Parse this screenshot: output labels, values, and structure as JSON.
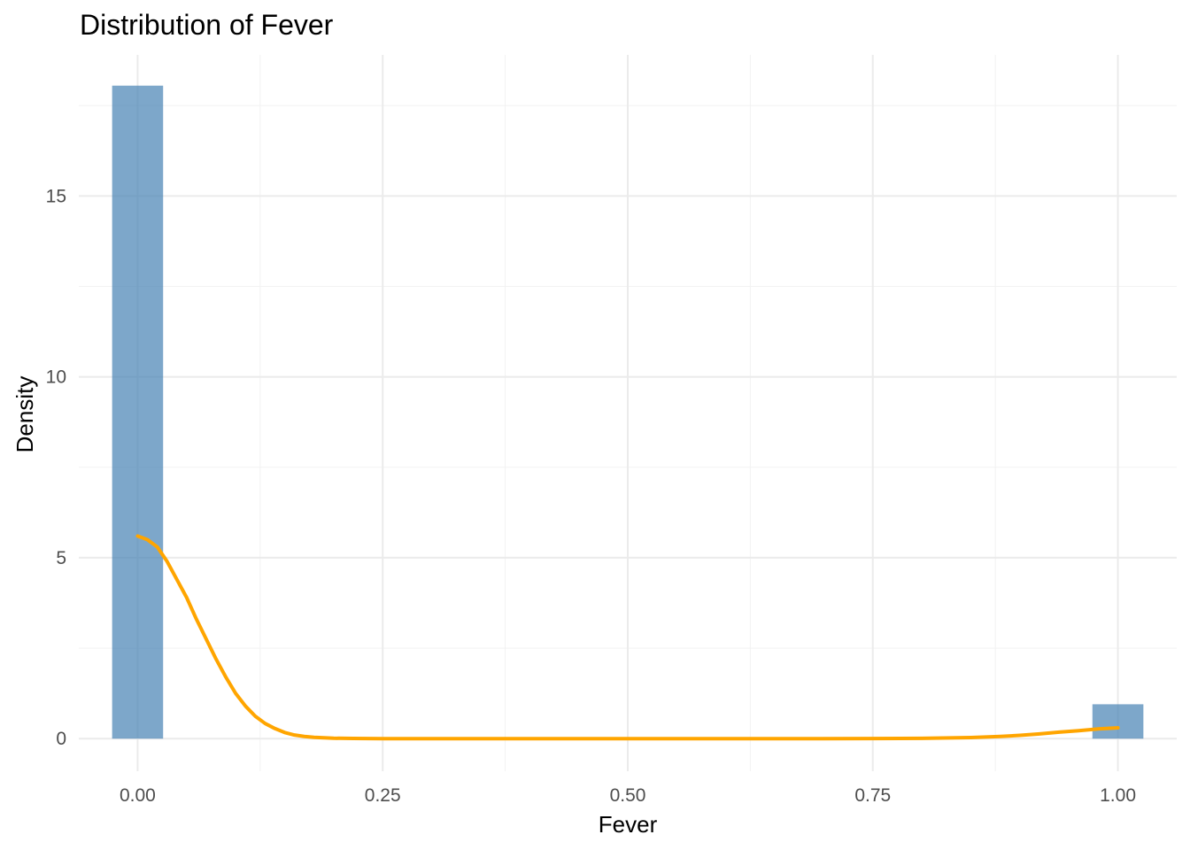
{
  "chart_data": {
    "type": "histogram",
    "title": "Distribution of Fever",
    "xlabel": "Fever",
    "ylabel": "Density",
    "xlim": [
      -0.06,
      1.06
    ],
    "ylim": [
      -0.9,
      18.9
    ],
    "x_ticks": [
      {
        "value": 0.0,
        "label": "0.00"
      },
      {
        "value": 0.25,
        "label": "0.25"
      },
      {
        "value": 0.5,
        "label": "0.50"
      },
      {
        "value": 0.75,
        "label": "0.75"
      },
      {
        "value": 1.0,
        "label": "1.00"
      }
    ],
    "y_ticks": [
      {
        "value": 0,
        "label": "0"
      },
      {
        "value": 5,
        "label": "5"
      },
      {
        "value": 10,
        "label": "10"
      },
      {
        "value": 15,
        "label": "15"
      }
    ],
    "x_minor_ticks": [
      0.125,
      0.375,
      0.625,
      0.875
    ],
    "y_minor_ticks": [
      2.5,
      7.5,
      12.5,
      17.5
    ],
    "bins": [
      {
        "x0": -0.026,
        "x1": 0.026,
        "density": 18.05
      },
      {
        "x0": 0.974,
        "x1": 1.026,
        "density": 0.95
      }
    ],
    "density_curve": {
      "x": [
        0.0,
        0.01,
        0.02,
        0.03,
        0.04,
        0.05,
        0.06,
        0.07,
        0.08,
        0.09,
        0.1,
        0.11,
        0.12,
        0.13,
        0.14,
        0.15,
        0.16,
        0.17,
        0.18,
        0.2,
        0.22,
        0.25,
        0.3,
        0.4,
        0.5,
        0.6,
        0.7,
        0.75,
        0.8,
        0.85,
        0.88,
        0.9,
        0.92,
        0.94,
        0.96,
        0.98,
        1.0
      ],
      "y": [
        5.6,
        5.5,
        5.3,
        4.9,
        4.4,
        3.9,
        3.3,
        2.75,
        2.2,
        1.7,
        1.25,
        0.9,
        0.62,
        0.42,
        0.28,
        0.17,
        0.1,
        0.06,
        0.035,
        0.012,
        0.004,
        0.001,
        0.0,
        0.0,
        0.0,
        0.0,
        0.0,
        0.002,
        0.01,
        0.03,
        0.06,
        0.09,
        0.13,
        0.18,
        0.22,
        0.27,
        0.3
      ]
    },
    "bar_color": "#4682B4",
    "bar_opacity": 0.7,
    "curve_color": "#FFA500",
    "grid": true,
    "legend": "none"
  }
}
